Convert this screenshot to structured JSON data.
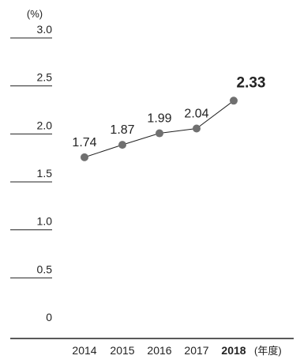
{
  "chart_data": {
    "type": "line",
    "title": "",
    "ylabel": "(%)",
    "xlabel": "",
    "x_unit": "(年度)",
    "ylim": [
      0,
      3.0
    ],
    "y_ticks": [
      "3.0",
      "2.5",
      "2.0",
      "1.5",
      "1.0",
      "0.5",
      "0"
    ],
    "categories": [
      "2014",
      "2015",
      "2016",
      "2017",
      "2018"
    ],
    "highlight_category": "2018",
    "series": [
      {
        "values": [
          1.74,
          1.87,
          1.99,
          2.04,
          2.33
        ],
        "labels": [
          "1.74",
          "1.87",
          "1.99",
          "2.04",
          "2.33"
        ],
        "color": "#707070"
      }
    ],
    "grid": false,
    "legend": "none",
    "colors": {
      "axis": "#222222",
      "text": "#222222",
      "tick_rule": "#222222"
    }
  }
}
